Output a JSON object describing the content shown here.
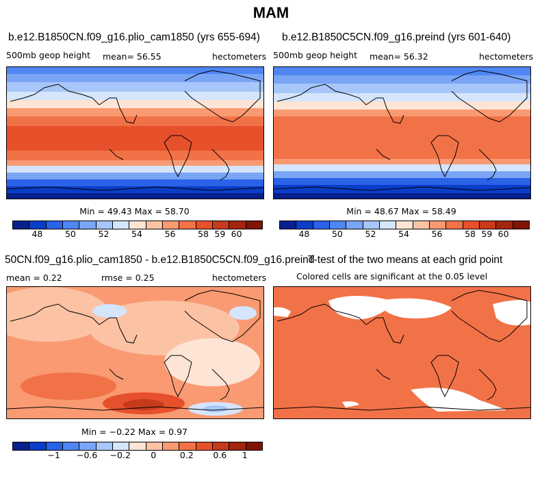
{
  "title": "MAM",
  "palette": [
    "#08208c",
    "#0a3dc8",
    "#2a62e8",
    "#4f86f2",
    "#7aa5f5",
    "#a7c6fa",
    "#d4e5fc",
    "#fde4d4",
    "#fcc2a4",
    "#f99a72",
    "#f27247",
    "#e6502b",
    "#c73a1c",
    "#a3240f",
    "#7f1306"
  ],
  "panels": [
    {
      "title": "b.e12.B1850CN.f09_g16.plio_cam1850 (yrs 655-694)",
      "variable": "500mb geop height",
      "stat_text": "mean=  56.55",
      "units": "hectometers",
      "minmax_text": "Min =  49.43 Max =  58.70",
      "colorbar_ticks": [
        "48",
        "50",
        "52",
        "54",
        "56",
        "58",
        "59",
        "60"
      ]
    },
    {
      "title": "b.e12.B1850C5CN.f09_g16.preind (yrs 601-640)",
      "variable": "500mb geop height",
      "stat_text": "mean=  56.32",
      "units": "hectometers",
      "minmax_text": "Min =  48.67 Max =  58.49",
      "colorbar_ticks": [
        "48",
        "50",
        "52",
        "54",
        "56",
        "58",
        "59",
        "60"
      ]
    },
    {
      "title": "50CN.f09_g16.plio_cam1850 - b.e12.B1850C5CN.f09_g16.preind",
      "stat_left": "mean =    0.22",
      "stat_mid": "rmse =   0.25",
      "units": "hectometers",
      "minmax_text": "Min =  −0.22 Max =   0.97",
      "colorbar_ticks": [
        "−1",
        "−0.6",
        "−0.2",
        "0",
        "0.2",
        "0.6",
        "1"
      ]
    },
    {
      "title": "T-test of the two means at each grid point",
      "subtitle": "Colored cells are significant at the 0.05 level"
    }
  ],
  "chart_data": [
    {
      "type": "heatmap",
      "title": "b.e12.B1850CN.f09_g16.plio_cam1850 (yrs 655-694)",
      "variable": "500mb geop height",
      "units": "hectometers",
      "mean": 56.55,
      "min": 49.43,
      "max": 58.7,
      "colorbar_ticks": [
        48,
        50,
        52,
        54,
        56,
        58,
        59,
        60
      ]
    },
    {
      "type": "heatmap",
      "title": "b.e12.B1850C5CN.f09_g16.preind (yrs 601-640)",
      "variable": "500mb geop height",
      "units": "hectometers",
      "mean": 56.32,
      "min": 48.67,
      "max": 58.49,
      "colorbar_ticks": [
        48,
        50,
        52,
        54,
        56,
        58,
        59,
        60
      ]
    },
    {
      "type": "heatmap",
      "title": "50CN.f09_g16.plio_cam1850 - b.e12.B1850C5CN.f09_g16.preind",
      "units": "hectometers",
      "mean": 0.22,
      "rmse": 0.25,
      "min": -0.22,
      "max": 0.97,
      "colorbar_ticks": [
        -1,
        -0.6,
        -0.2,
        0,
        0.2,
        0.6,
        1
      ]
    },
    {
      "type": "heatmap",
      "title": "T-test of the two means at each grid point",
      "subtitle": "Colored cells are significant at the 0.05 level"
    }
  ]
}
